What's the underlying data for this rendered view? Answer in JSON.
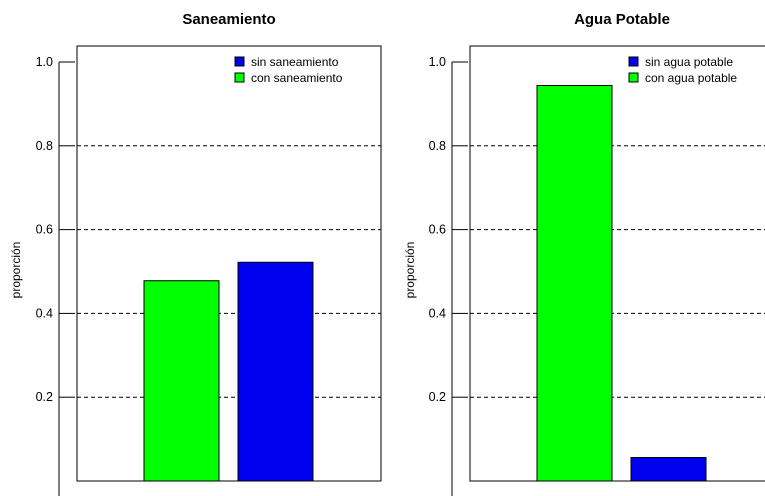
{
  "chart_data": [
    {
      "type": "bar",
      "title": "Saneamiento",
      "ylabel": "proporción",
      "ylim": [
        0,
        1.0
      ],
      "yticks": [
        "0.2",
        "0.4",
        "0.6",
        "0.8",
        "1.0"
      ],
      "grid": "horizontal dashed",
      "legend": "top-right",
      "series": [
        {
          "name": "con saneamiento",
          "value": 0.478,
          "color": "#00ff00"
        },
        {
          "name": "sin saneamiento",
          "value": 0.522,
          "color": "#0000ee"
        }
      ],
      "legend_entries": [
        {
          "label": "sin saneamiento",
          "color": "#0000ee"
        },
        {
          "label": "con saneamiento",
          "color": "#00ff00"
        }
      ]
    },
    {
      "type": "bar",
      "title": "Agua Potable",
      "ylabel": "proporción",
      "ylim": [
        0,
        1.0
      ],
      "yticks": [
        "0.2",
        "0.4",
        "0.6",
        "0.8",
        "1.0"
      ],
      "grid": "horizontal dashed",
      "legend": "top-right",
      "series": [
        {
          "name": "con agua potable",
          "value": 0.944,
          "color": "#00ff00"
        },
        {
          "name": "sin agua potable",
          "value": 0.056,
          "color": "#0000ee"
        }
      ],
      "legend_entries": [
        {
          "label": "sin agua potable",
          "color": "#0000ee"
        },
        {
          "label": "con agua potable",
          "color": "#00ff00"
        }
      ]
    }
  ]
}
